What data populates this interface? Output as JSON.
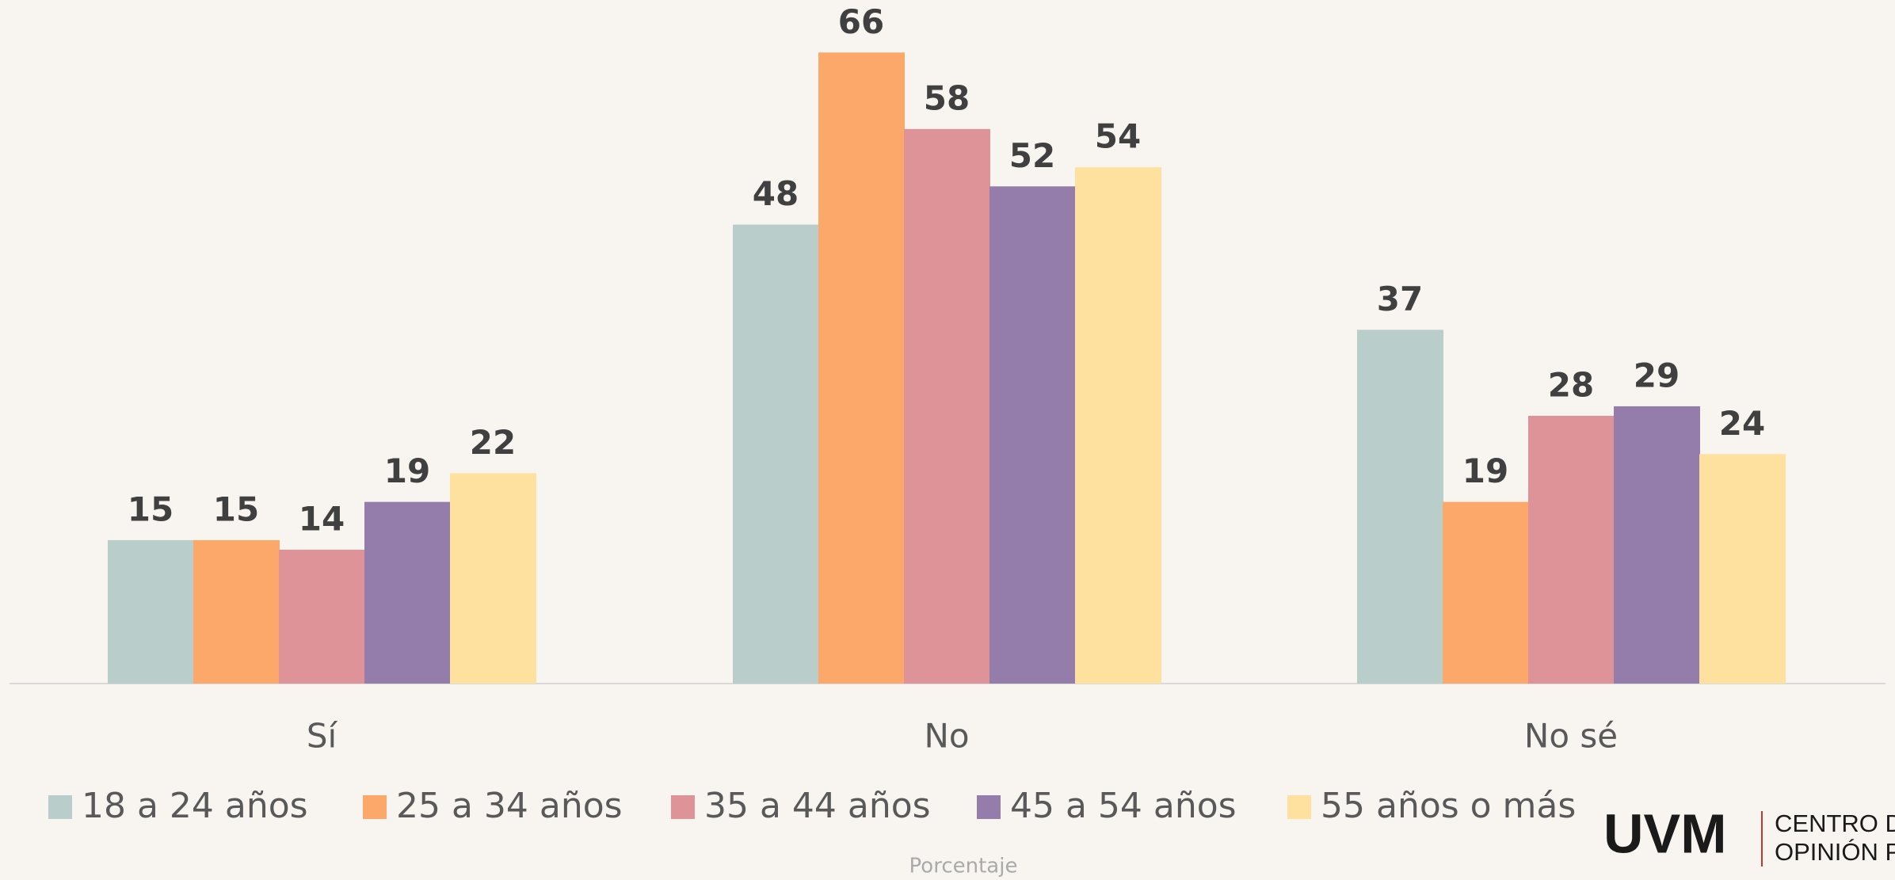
{
  "chart_data": {
    "type": "bar",
    "categories": [
      "Sí",
      "No",
      "No sé"
    ],
    "series": [
      {
        "name": "18 a 24 años",
        "color": "#b9ceca",
        "values": [
          15,
          48,
          37
        ]
      },
      {
        "name": "25 a 34 años",
        "color": "#fda86b",
        "values": [
          15,
          66,
          19
        ]
      },
      {
        "name": "35 a 44 años",
        "color": "#de9399",
        "values": [
          14,
          58,
          28
        ]
      },
      {
        "name": "45 a 54 años",
        "color": "#957dab",
        "values": [
          19,
          52,
          29
        ]
      },
      {
        "name": "55 años o más",
        "color": "#fee19e",
        "values": [
          22,
          54,
          24
        ]
      }
    ],
    "ylim": [
      0,
      70
    ],
    "axis_label": "Porcentaje",
    "logo": {
      "text": "UVM",
      "lines": [
        "CENTRO DE",
        "OPINIÓN PÚ"
      ]
    }
  }
}
